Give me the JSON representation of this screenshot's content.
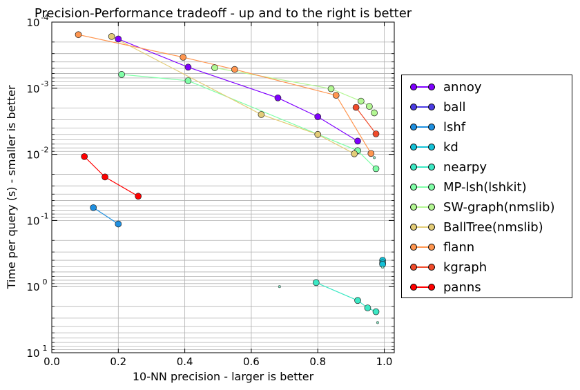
{
  "chart_data": {
    "type": "scatter",
    "title": "Precision-Performance tradeoff - up and to the right is better",
    "xlabel": "10-NN precision - larger is better",
    "ylabel": "Time per query (s) - smaller is better",
    "xlim": [
      0.0,
      1.03
    ],
    "ylim": [
      10,
      0.0001
    ],
    "yscale": "log",
    "yaxis_inverted": true,
    "grid": true,
    "legend_position": "right",
    "x_ticks": [
      "0.0",
      "0.2",
      "0.4",
      "0.6",
      "0.8",
      "1.0"
    ],
    "y_ticks": [
      {
        "base": "10",
        "exp": "-4"
      },
      {
        "base": "10",
        "exp": "-3"
      },
      {
        "base": "10",
        "exp": "-2"
      },
      {
        "base": "10",
        "exp": "-1"
      },
      {
        "base": "10",
        "exp": "0"
      },
      {
        "base": "10",
        "exp": "1"
      }
    ],
    "series": [
      {
        "name": "annoy",
        "color": "#7f00ff",
        "points": [
          [
            0.2,
            0.00018
          ],
          [
            0.41,
            0.00048
          ],
          [
            0.68,
            0.0014
          ],
          [
            0.8,
            0.0027
          ],
          [
            0.92,
            0.0063
          ]
        ]
      },
      {
        "name": "ball",
        "color": "#4b3ce3",
        "points": []
      },
      {
        "name": "lshf",
        "color": "#1e8fe0",
        "points": [
          [
            0.125,
            0.064
          ],
          [
            0.2,
            0.113
          ]
        ]
      },
      {
        "name": "kd",
        "color": "#14c1d7",
        "points": [
          [
            0.995,
            0.4
          ],
          [
            0.995,
            0.44
          ],
          [
            0.995,
            0.46
          ]
        ]
      },
      {
        "name": "nearpy",
        "color": "#3ce8c4",
        "points": [
          [
            0.795,
            0.87
          ],
          [
            0.92,
            1.62
          ],
          [
            0.95,
            2.1
          ],
          [
            0.975,
            2.4
          ]
        ]
      },
      {
        "name": "MP-lsh(lshkit)",
        "color": "#80ffa8",
        "points": [
          [
            0.21,
            0.00062
          ],
          [
            0.41,
            0.00077
          ],
          [
            0.92,
            0.0088
          ],
          [
            0.975,
            0.0165
          ]
        ]
      },
      {
        "name": "SW-graph(nmslib)",
        "color": "#b3f793",
        "points": [
          [
            0.49,
            0.00049
          ],
          [
            0.84,
            0.00102
          ],
          [
            0.93,
            0.00157
          ],
          [
            0.955,
            0.00188
          ],
          [
            0.97,
            0.00236
          ]
        ]
      },
      {
        "name": "BallTree(nmslib)",
        "color": "#e3cc78",
        "points": [
          [
            0.18,
            0.000165
          ],
          [
            0.63,
            0.0025
          ],
          [
            0.8,
            0.005
          ],
          [
            0.91,
            0.0098
          ]
        ]
      },
      {
        "name": "flann",
        "color": "#ff9650",
        "points": [
          [
            0.08,
            0.000155
          ],
          [
            0.395,
            0.00034
          ],
          [
            0.55,
            0.00052
          ],
          [
            0.855,
            0.00128
          ],
          [
            0.96,
            0.0097
          ]
        ]
      },
      {
        "name": "kgraph",
        "color": "#f04b2b",
        "points": [
          [
            0.915,
            0.00195
          ],
          [
            0.975,
            0.0049
          ]
        ]
      },
      {
        "name": "panns",
        "color": "#ff0000",
        "points": [
          [
            0.098,
            0.0108
          ],
          [
            0.16,
            0.022
          ],
          [
            0.26,
            0.043
          ]
        ]
      }
    ],
    "outliers": [
      {
        "x": 0.685,
        "y": 1.0
      },
      {
        "x": 0.97,
        "y": 0.0112
      },
      {
        "x": 0.98,
        "y": 3.5
      },
      {
        "x": 0.995,
        "y": 0.51
      }
    ]
  }
}
